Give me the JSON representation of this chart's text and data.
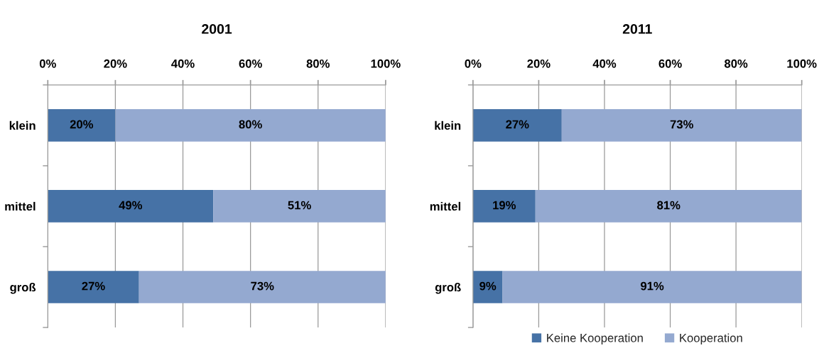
{
  "chart_data": [
    {
      "type": "bar",
      "orientation": "horizontal",
      "stacked": true,
      "title": "2001",
      "categories": [
        "klein",
        "mittel",
        "groß"
      ],
      "series": [
        {
          "color": "#4672a6",
          "values": [
            20,
            49,
            27
          ],
          "value_labels": [
            "20%",
            "49%",
            "27%"
          ]
        },
        {
          "color": "#94a9d0",
          "values": [
            80,
            51,
            73
          ],
          "value_labels": [
            "80%",
            "51%",
            "73%"
          ]
        }
      ],
      "xlim": [
        0,
        100
      ],
      "xticks": [
        {
          "value": 0,
          "label": "0%"
        },
        {
          "value": 20,
          "label": "20%"
        },
        {
          "value": 40,
          "label": "40%"
        },
        {
          "value": 60,
          "label": "60%"
        },
        {
          "value": 80,
          "label": "80%"
        },
        {
          "value": 100,
          "label": "100%"
        }
      ],
      "grid": "x"
    },
    {
      "type": "bar",
      "orientation": "horizontal",
      "stacked": true,
      "title": "2011",
      "categories": [
        "klein",
        "mittel",
        "groß"
      ],
      "series": [
        {
          "name": "Keine Kooperation",
          "color": "#4672a6",
          "values": [
            27,
            19,
            9
          ],
          "value_labels": [
            "27%",
            "19%",
            "9%"
          ]
        },
        {
          "name": "Kooperation",
          "color": "#94a9d0",
          "values": [
            73,
            81,
            91
          ],
          "value_labels": [
            "73%",
            "81%",
            "91%"
          ]
        }
      ],
      "xlim": [
        0,
        100
      ],
      "xticks": [
        {
          "value": 0,
          "label": "0%"
        },
        {
          "value": 20,
          "label": "20%"
        },
        {
          "value": 40,
          "label": "40%"
        },
        {
          "value": 60,
          "label": "60%"
        },
        {
          "value": 80,
          "label": "80%"
        },
        {
          "value": 100,
          "label": "100%"
        }
      ],
      "grid": "x",
      "legend": "bottom"
    }
  ]
}
